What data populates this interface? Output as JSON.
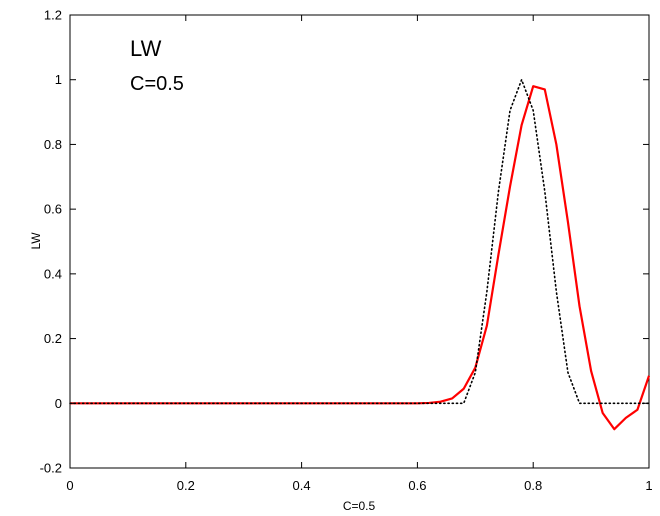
{
  "chart_data": {
    "type": "line",
    "title": "",
    "xlabel": "C=0.5",
    "ylabel": "LW",
    "xlim": [
      0,
      1
    ],
    "ylim": [
      -0.2,
      1.2
    ],
    "grid": false,
    "box": true,
    "xticks": [
      0,
      0.2,
      0.4,
      0.6,
      0.8,
      1
    ],
    "xtick_labels": [
      "0",
      "0.2",
      "0.4",
      "0.6",
      "0.8",
      "1"
    ],
    "yticks": [
      -0.2,
      0,
      0.2,
      0.4,
      0.6,
      0.8,
      1,
      1.2
    ],
    "ytick_labels": [
      "-0.2",
      "0",
      "0.2",
      "0.4",
      "0.6",
      "0.8",
      "1",
      "1.2"
    ],
    "annotations": [
      "LW",
      "C=0.5"
    ],
    "series": [
      {
        "style": "solid",
        "color": "#ff0000",
        "x": [
          0,
          0.6,
          0.62,
          0.64,
          0.66,
          0.68,
          0.7,
          0.72,
          0.74,
          0.76,
          0.78,
          0.8,
          0.82,
          0.84,
          0.86,
          0.88,
          0.9,
          0.92,
          0.94,
          0.96,
          0.98,
          1.0
        ],
        "y": [
          0,
          0,
          0.001,
          0.005,
          0.015,
          0.045,
          0.11,
          0.24,
          0.46,
          0.67,
          0.86,
          0.98,
          0.97,
          0.8,
          0.56,
          0.3,
          0.1,
          -0.03,
          -0.08,
          -0.045,
          -0.02,
          0.085
        ]
      },
      {
        "style": "dotted",
        "color": "#000000",
        "x": [
          0,
          0.68,
          0.7,
          0.72,
          0.74,
          0.76,
          0.78,
          0.8,
          0.82,
          0.84,
          0.86,
          0.88,
          0.9,
          0.92,
          1.0
        ],
        "y": [
          0,
          0,
          0.095,
          0.345,
          0.655,
          0.905,
          1.0,
          0.905,
          0.655,
          0.345,
          0.095,
          0,
          0,
          0,
          0
        ]
      }
    ]
  }
}
